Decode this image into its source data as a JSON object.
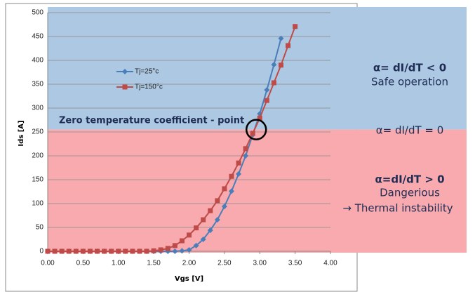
{
  "chart_data": {
    "type": "line",
    "x_label": "Vgs [V]",
    "y_label": "Ids [A]",
    "x": [
      0,
      0.1,
      0.2,
      0.3,
      0.4,
      0.5,
      0.6,
      0.7,
      0.8,
      0.9,
      1.0,
      1.1,
      1.2,
      1.3,
      1.4,
      1.5,
      1.6,
      1.7,
      1.8,
      1.9,
      2.0,
      2.1,
      2.2,
      2.3,
      2.4,
      2.5,
      2.6,
      2.7,
      2.8,
      2.9,
      3.0,
      3.1,
      3.2,
      3.3,
      3.4,
      3.5
    ],
    "series": [
      {
        "name": "Tj=25°c",
        "color": "#4a7ebb",
        "marker": "diamond",
        "values": [
          0,
          0,
          0,
          0,
          0,
          0,
          0,
          0,
          0,
          0,
          0,
          0,
          0,
          0,
          0,
          0,
          0,
          0,
          0,
          1,
          3,
          12,
          25,
          44,
          66,
          94,
          126,
          162,
          200,
          244,
          288,
          338,
          391,
          446,
          null,
          null
        ]
      },
      {
        "name": "Tj=150°c",
        "color": "#be4b48",
        "marker": "square",
        "values": [
          0,
          0,
          0,
          0,
          0,
          0,
          0,
          0,
          0,
          0,
          0,
          0,
          0,
          0,
          0,
          1,
          3,
          6,
          12,
          22,
          34,
          49,
          66,
          85,
          106,
          131,
          157,
          185,
          215,
          247,
          279,
          316,
          353,
          390,
          431,
          471
        ]
      }
    ],
    "xlim": [
      0,
      4
    ],
    "ylim": [
      0,
      500
    ],
    "xticks": [
      {
        "value": 0,
        "label": "0.00"
      },
      {
        "value": 0.5,
        "label": "0.50"
      },
      {
        "value": 1,
        "label": "1.00"
      },
      {
        "value": 1.5,
        "label": "1.50"
      },
      {
        "value": 2,
        "label": "2.00"
      },
      {
        "value": 2.5,
        "label": "2.50"
      },
      {
        "value": 3,
        "label": "3.00"
      },
      {
        "value": 3.5,
        "label": "3.50"
      },
      {
        "value": 4,
        "label": "4.00"
      }
    ],
    "yticks": [
      0,
      50,
      100,
      150,
      200,
      250,
      300,
      350,
      400,
      450,
      500
    ],
    "grid": true,
    "zero_tc_point": {
      "x": 2.95,
      "y": 255,
      "label": "Zero temperature coefficient - point"
    },
    "regions": {
      "above": {
        "color": "#adc8e2",
        "lines": [
          "α= dI/dT < 0",
          "Safe operation"
        ]
      },
      "boundary": {
        "lines": [
          "α= dI/dT = 0"
        ]
      },
      "below": {
        "color": "#f8aaae",
        "lines": [
          "α=dI/dT > 0",
          "Dangerious",
          "→ Thermal instability"
        ]
      }
    }
  }
}
